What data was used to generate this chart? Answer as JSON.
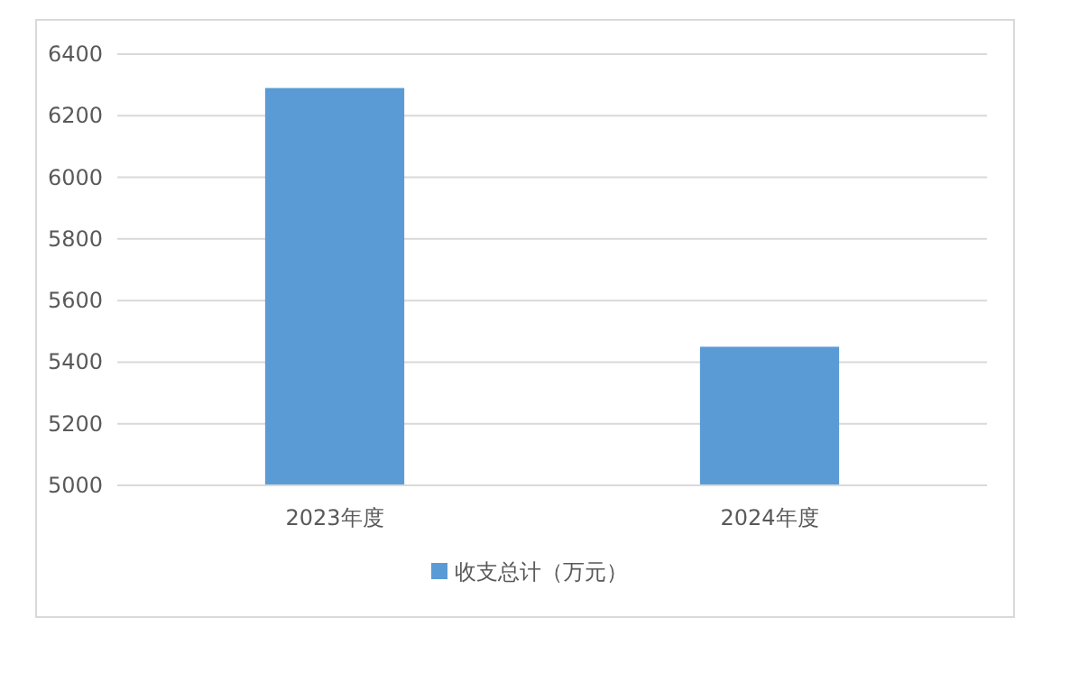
{
  "chart_data": {
    "type": "bar",
    "categories": [
      "2023年度",
      "2024年度"
    ],
    "series": [
      {
        "name": "收支总计（万元）",
        "color": "#5b9bd5",
        "values": [
          6290,
          5450
        ]
      }
    ],
    "ylim": [
      5000,
      6400
    ],
    "yticks": [
      5000,
      5200,
      5400,
      5600,
      5800,
      6000,
      6200,
      6400
    ],
    "grid": "y",
    "legend": "bottom"
  }
}
